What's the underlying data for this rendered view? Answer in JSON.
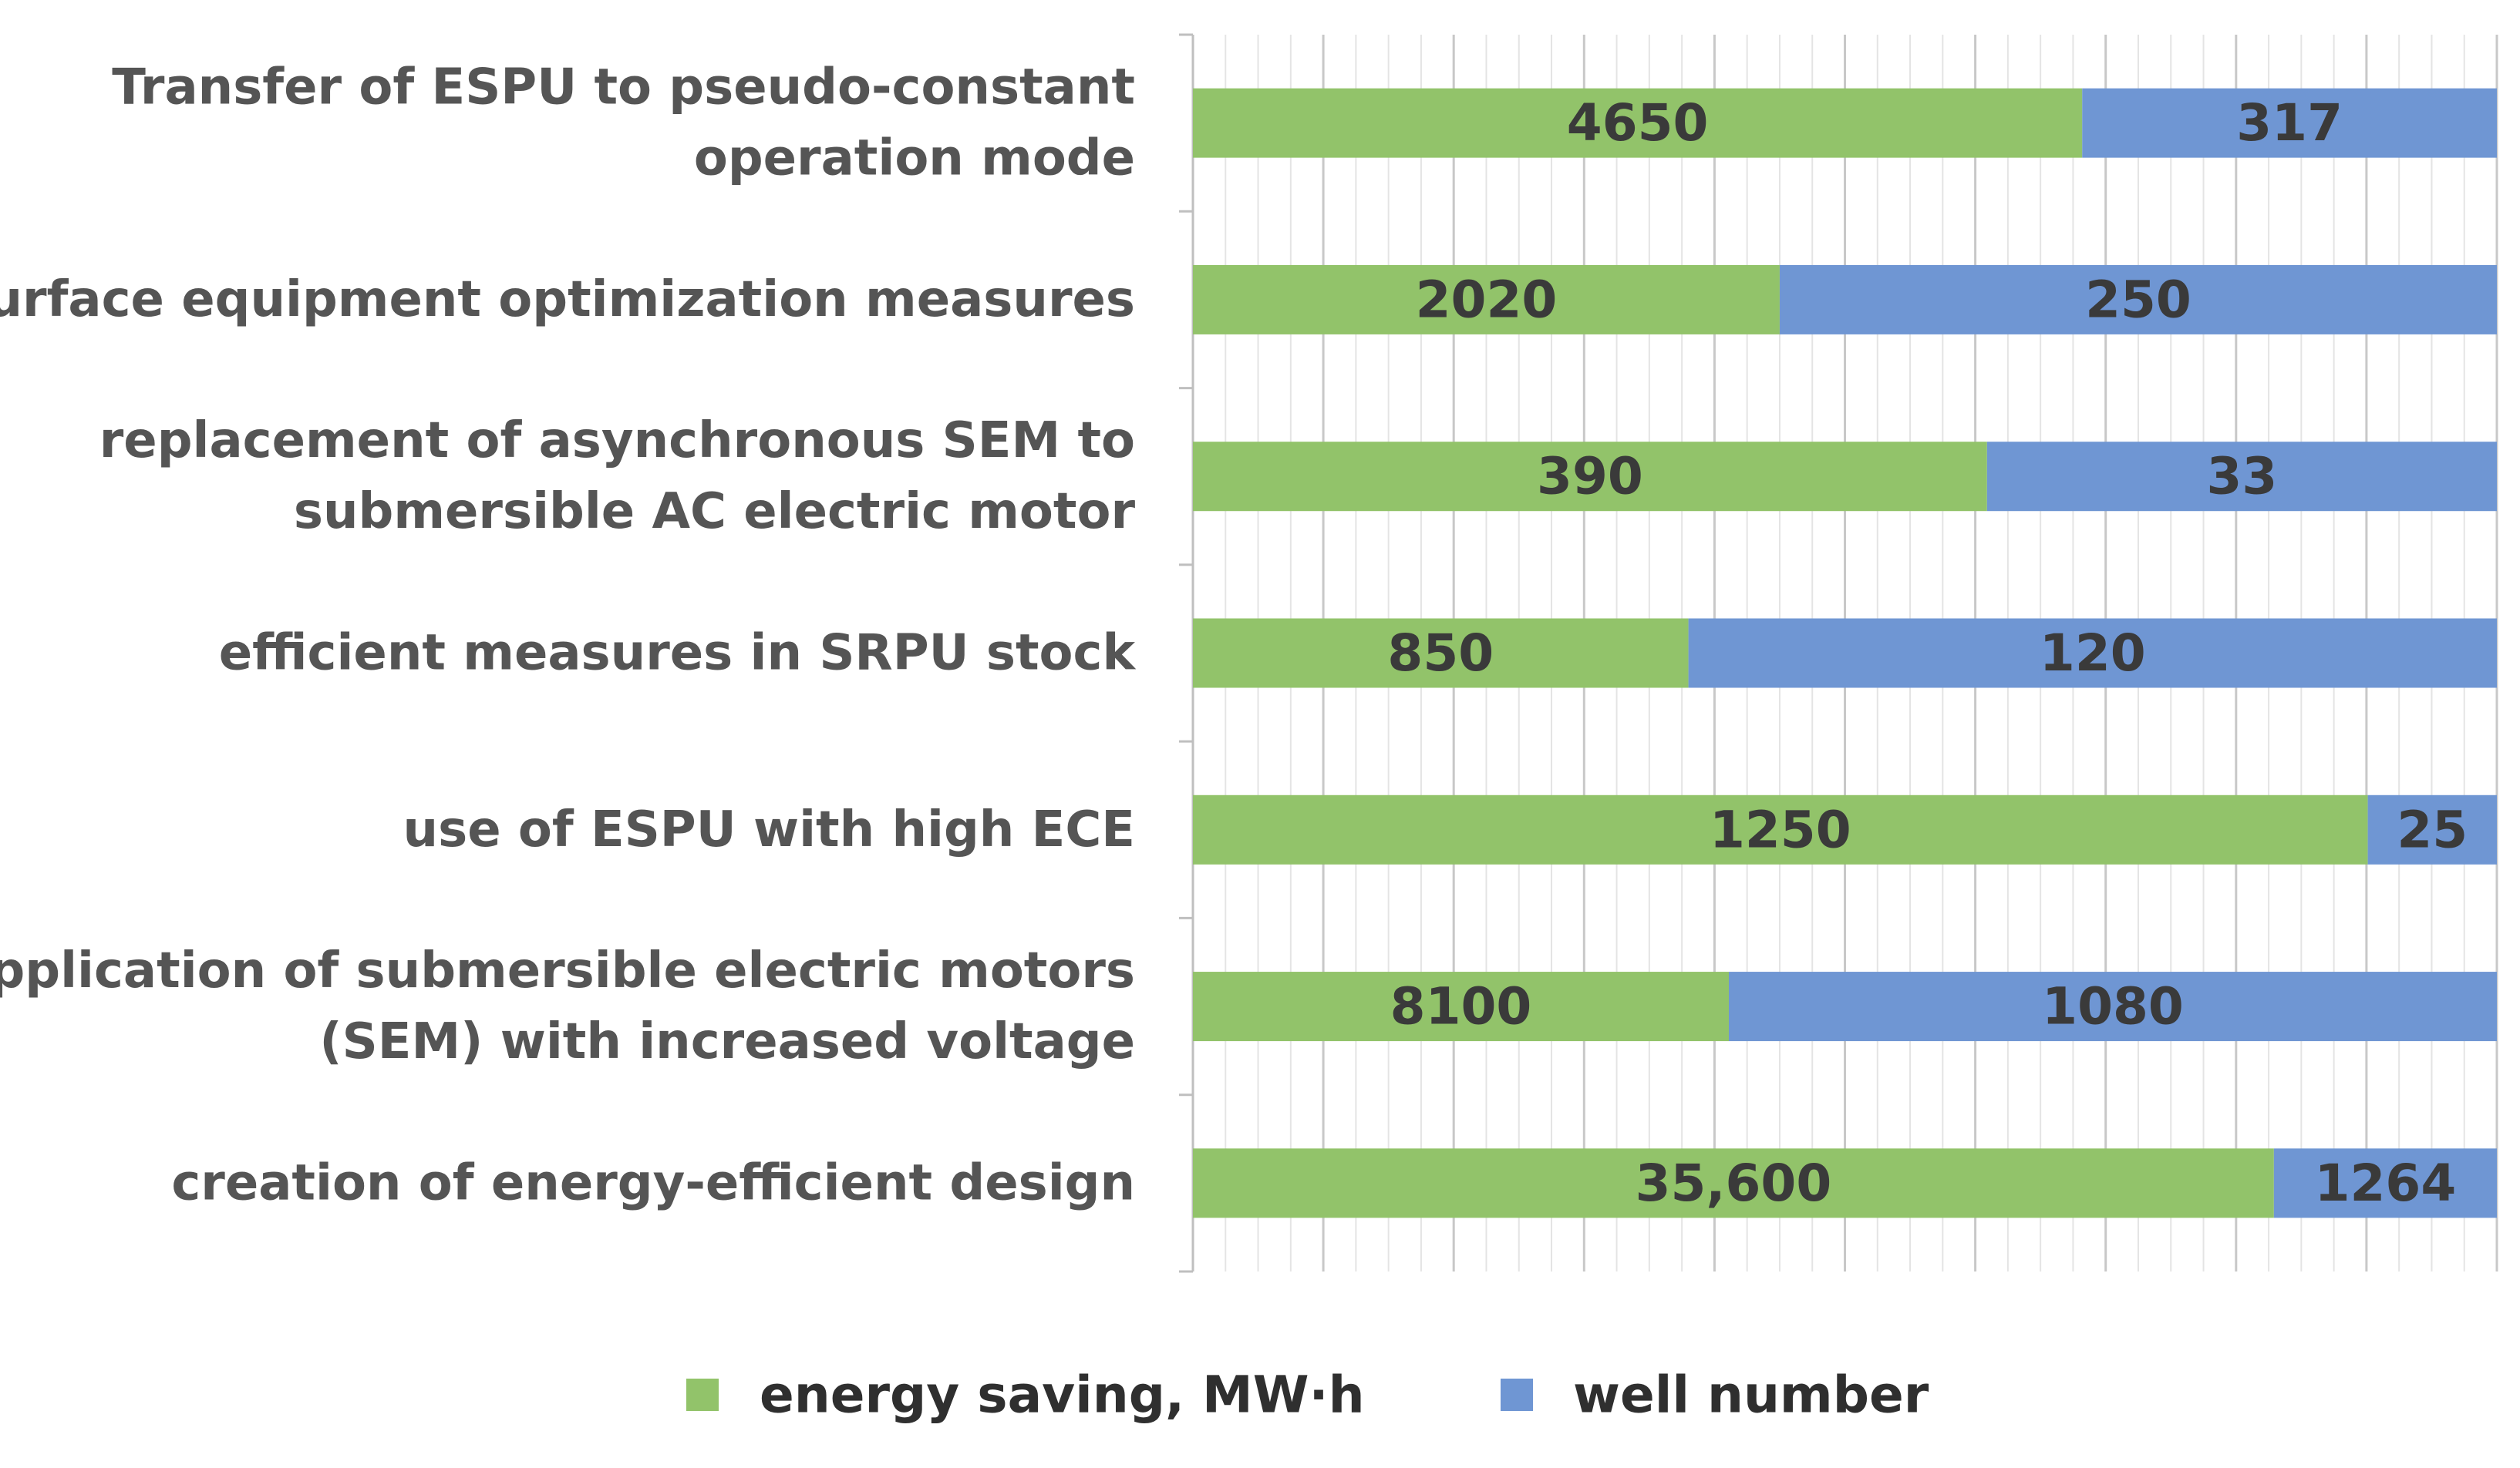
{
  "chart_data": {
    "type": "bar",
    "stacked": true,
    "normalized": true,
    "orientation": "horizontal",
    "title": "",
    "xlabel": "",
    "ylabel": "",
    "grid": true,
    "legend_position": "bottom",
    "categories": [
      {
        "lines": [
          "Transfer of ESPU to pseudo-constant",
          "operation mode"
        ]
      },
      {
        "lines": [
          "surface equipment optimization measures"
        ]
      },
      {
        "lines": [
          "replacement of asynchronous SEM to",
          "submersible AC electric motor"
        ]
      },
      {
        "lines": [
          "efficient measures in SRPU stock"
        ]
      },
      {
        "lines": [
          "use of ESPU with high ECE"
        ]
      },
      {
        "lines": [
          "application of submersible electric motors",
          "(SEM) with increased voltage"
        ]
      },
      {
        "lines": [
          "creation of energy-efficient design"
        ]
      }
    ],
    "series": [
      {
        "name": "energy saving, MW·h",
        "color": "#92c36a",
        "values": [
          4650,
          2020,
          390,
          850,
          1250,
          8100,
          35600
        ],
        "labels": [
          "4650",
          "2020",
          "390",
          "850",
          "1250",
          "8100",
          "35,600"
        ],
        "share": [
          0.682,
          0.45,
          0.609,
          0.38,
          0.901,
          0.411,
          0.829
        ]
      },
      {
        "name": "well number",
        "color": "#6f96d3",
        "values": [
          317,
          250,
          33,
          120,
          25,
          1080,
          1264
        ],
        "labels": [
          "317",
          "250",
          "33",
          "120",
          "25",
          "1080",
          "1264"
        ]
      }
    ]
  }
}
